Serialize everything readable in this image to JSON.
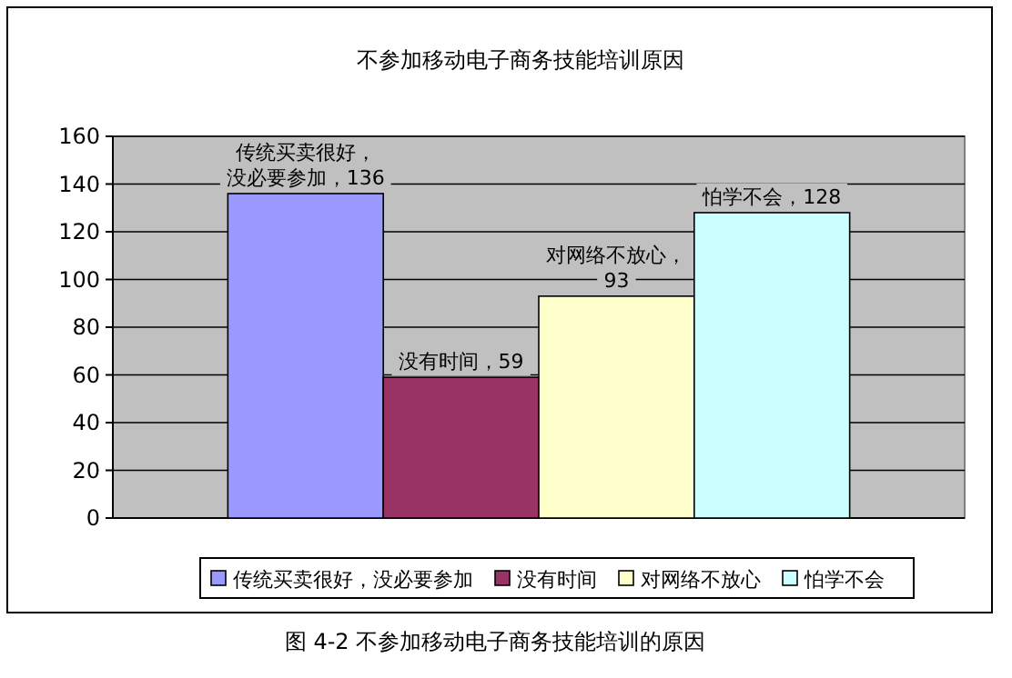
{
  "chart_data": {
    "type": "bar",
    "title": "不参加移动电子商务技能培训原因",
    "categories": [
      null
    ],
    "series": [
      {
        "name": "传统买卖很好，没必要参加",
        "color": "#9999ff",
        "values": [
          136
        ],
        "value_labels": [
          "传统买卖很好，没必要参加，136"
        ]
      },
      {
        "name": "没有时间",
        "color": "#993366",
        "values": [
          59
        ],
        "value_labels": [
          "没有时间，59"
        ]
      },
      {
        "name": "对网络不放心",
        "color": "#ffffcc",
        "values": [
          93
        ],
        "value_labels": [
          "对网络不放心，93"
        ]
      },
      {
        "name": "怕学不会",
        "color": "#ccffff",
        "values": [
          128
        ],
        "value_labels": [
          "怕学不会，128"
        ]
      }
    ],
    "ylim": [
      0,
      160
    ],
    "yticks": [
      0,
      20,
      40,
      60,
      80,
      100,
      120,
      140,
      160
    ],
    "grid": "y",
    "legend": "bottom",
    "annotations": [
      "图 4-2 不参加移动电子商务技能培训的原因"
    ]
  }
}
